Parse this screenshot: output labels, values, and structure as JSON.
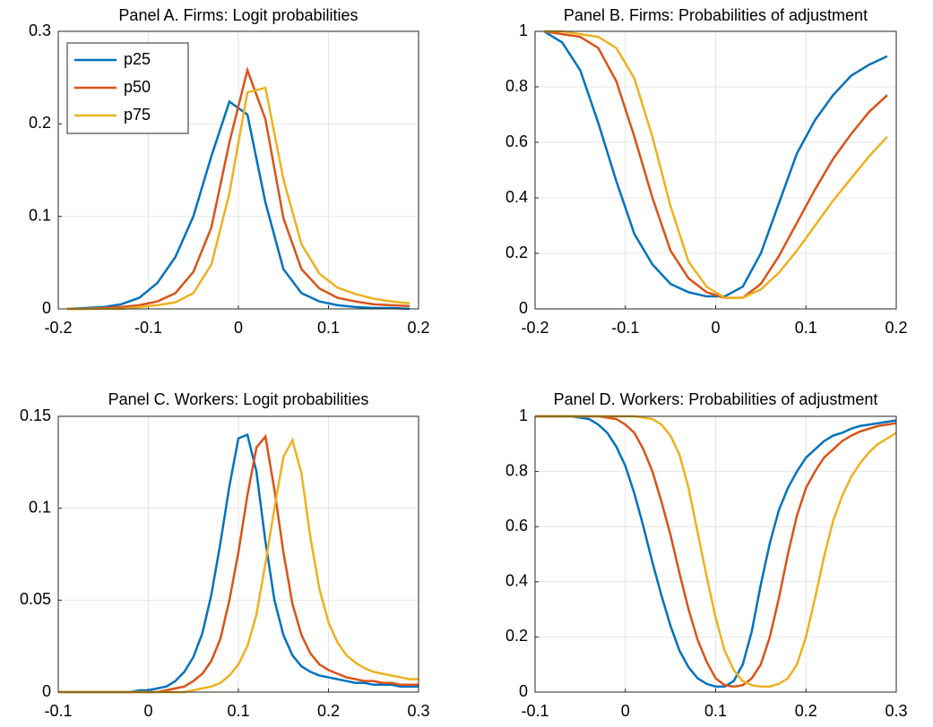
{
  "chart_data": [
    {
      "type": "line",
      "title": "Panel A. Firms: Logit probabilities",
      "grid": true,
      "legend": "northwest",
      "x": [
        -0.19,
        -0.17,
        -0.15,
        -0.13,
        -0.11,
        -0.09,
        -0.07,
        -0.05,
        -0.03,
        -0.01,
        0.01,
        0.03,
        0.05,
        0.07,
        0.09,
        0.11,
        0.13,
        0.15,
        0.17,
        0.19
      ],
      "xlim": [
        -0.2,
        0.2
      ],
      "xticks": [
        -0.2,
        -0.1,
        0,
        0.1,
        0.2
      ],
      "ylim": [
        0,
        0.3
      ],
      "yticks": [
        0,
        0.1,
        0.2,
        0.3
      ],
      "series": [
        {
          "name": "p25",
          "color": "#0072bd",
          "values": [
            0,
            0.001,
            0.002,
            0.005,
            0.012,
            0.028,
            0.056,
            0.1,
            0.165,
            0.224,
            0.21,
            0.115,
            0.043,
            0.017,
            0.008,
            0.004,
            0.002,
            0.001,
            0.001,
            0
          ]
        },
        {
          "name": "p50",
          "color": "#d95319",
          "values": [
            0,
            0,
            0.001,
            0.002,
            0.004,
            0.008,
            0.017,
            0.04,
            0.088,
            0.18,
            0.258,
            0.205,
            0.098,
            0.043,
            0.022,
            0.012,
            0.008,
            0.005,
            0.004,
            0.003
          ]
        },
        {
          "name": "p75",
          "color": "#edb120",
          "values": [
            0,
            0,
            0,
            0,
            0.002,
            0.004,
            0.007,
            0.017,
            0.048,
            0.125,
            0.234,
            0.239,
            0.14,
            0.07,
            0.038,
            0.023,
            0.016,
            0.011,
            0.008,
            0.006
          ]
        }
      ]
    },
    {
      "type": "line",
      "title": "Panel B. Firms: Probabilities of adjustment",
      "grid": true,
      "x": [
        -0.19,
        -0.17,
        -0.15,
        -0.13,
        -0.11,
        -0.09,
        -0.07,
        -0.05,
        -0.03,
        -0.01,
        0.01,
        0.03,
        0.05,
        0.07,
        0.09,
        0.11,
        0.13,
        0.15,
        0.17,
        0.19
      ],
      "xlim": [
        -0.2,
        0.2
      ],
      "xticks": [
        -0.2,
        -0.1,
        0,
        0.1,
        0.2
      ],
      "ylim": [
        0,
        1
      ],
      "yticks": [
        0,
        0.2,
        0.4,
        0.6,
        0.8,
        1
      ],
      "series": [
        {
          "color": "#0072bd",
          "values": [
            1,
            0.96,
            0.86,
            0.67,
            0.46,
            0.27,
            0.16,
            0.09,
            0.06,
            0.045,
            0.045,
            0.08,
            0.2,
            0.38,
            0.56,
            0.68,
            0.77,
            0.84,
            0.88,
            0.91
          ]
        },
        {
          "color": "#d95319",
          "values": [
            1,
            0.99,
            0.98,
            0.94,
            0.82,
            0.62,
            0.4,
            0.21,
            0.11,
            0.06,
            0.04,
            0.04,
            0.09,
            0.19,
            0.31,
            0.43,
            0.54,
            0.63,
            0.71,
            0.77
          ]
        },
        {
          "color": "#edb120",
          "values": [
            1,
            1,
            0.99,
            0.98,
            0.94,
            0.83,
            0.62,
            0.37,
            0.17,
            0.08,
            0.04,
            0.04,
            0.07,
            0.13,
            0.21,
            0.3,
            0.39,
            0.47,
            0.55,
            0.62
          ]
        }
      ]
    },
    {
      "type": "line",
      "title": "Panel C. Workers: Logit probabilities",
      "grid": true,
      "x": [
        -0.1,
        -0.09,
        -0.08,
        -0.07,
        -0.06,
        -0.05,
        -0.04,
        -0.03,
        -0.02,
        -0.01,
        0,
        0.01,
        0.02,
        0.03,
        0.04,
        0.05,
        0.06,
        0.07,
        0.08,
        0.09,
        0.1,
        0.11,
        0.12,
        0.13,
        0.14,
        0.15,
        0.16,
        0.17,
        0.18,
        0.19,
        0.2,
        0.21,
        0.22,
        0.23,
        0.24,
        0.25,
        0.26,
        0.27,
        0.28,
        0.29,
        0.3
      ],
      "xlim": [
        -0.1,
        0.3
      ],
      "xticks": [
        -0.1,
        0,
        0.1,
        0.2,
        0.3
      ],
      "ylim": [
        0,
        0.15
      ],
      "yticks": [
        0,
        0.05,
        0.1,
        0.15
      ],
      "series": [
        {
          "color": "#0072bd",
          "values": [
            0,
            0,
            0,
            0,
            0,
            0,
            0,
            0,
            0,
            0.001,
            0.001,
            0.002,
            0.003,
            0.006,
            0.011,
            0.019,
            0.032,
            0.053,
            0.081,
            0.112,
            0.138,
            0.14,
            0.12,
            0.082,
            0.05,
            0.031,
            0.02,
            0.014,
            0.011,
            0.009,
            0.008,
            0.007,
            0.006,
            0.005,
            0.005,
            0.004,
            0.004,
            0.004,
            0.003,
            0.003,
            0.003
          ]
        },
        {
          "color": "#d95319",
          "values": [
            0,
            0,
            0,
            0,
            0,
            0,
            0,
            0,
            0,
            0,
            0,
            0,
            0.001,
            0.002,
            0.003,
            0.006,
            0.01,
            0.017,
            0.029,
            0.05,
            0.076,
            0.107,
            0.133,
            0.139,
            0.11,
            0.076,
            0.048,
            0.031,
            0.021,
            0.015,
            0.012,
            0.01,
            0.008,
            0.007,
            0.006,
            0.006,
            0.005,
            0.005,
            0.004,
            0.004,
            0.004
          ]
        },
        {
          "color": "#edb120",
          "values": [
            0,
            0,
            0,
            0,
            0,
            0,
            0,
            0,
            0,
            0,
            0,
            0,
            0,
            0,
            0,
            0.001,
            0.002,
            0.003,
            0.005,
            0.009,
            0.015,
            0.025,
            0.042,
            0.07,
            0.1,
            0.128,
            0.137,
            0.119,
            0.084,
            0.056,
            0.038,
            0.027,
            0.02,
            0.016,
            0.013,
            0.011,
            0.01,
            0.009,
            0.008,
            0.007,
            0.007
          ]
        }
      ]
    },
    {
      "type": "line",
      "title": "Panel D. Workers: Probabilities of adjustment",
      "grid": true,
      "x": [
        -0.1,
        -0.09,
        -0.08,
        -0.07,
        -0.06,
        -0.05,
        -0.04,
        -0.03,
        -0.02,
        -0.01,
        0,
        0.01,
        0.02,
        0.03,
        0.04,
        0.05,
        0.06,
        0.07,
        0.08,
        0.09,
        0.1,
        0.11,
        0.12,
        0.13,
        0.14,
        0.15,
        0.16,
        0.17,
        0.18,
        0.19,
        0.2,
        0.21,
        0.22,
        0.23,
        0.24,
        0.25,
        0.26,
        0.27,
        0.28,
        0.29,
        0.3
      ],
      "xlim": [
        -0.1,
        0.3
      ],
      "xticks": [
        -0.1,
        0,
        0.1,
        0.2,
        0.3
      ],
      "ylim": [
        0,
        1
      ],
      "yticks": [
        0,
        0.2,
        0.4,
        0.6,
        0.8,
        1
      ],
      "series": [
        {
          "color": "#0072bd",
          "values": [
            1,
            1,
            1,
            1,
            1,
            0.995,
            0.99,
            0.97,
            0.94,
            0.89,
            0.82,
            0.72,
            0.6,
            0.47,
            0.35,
            0.24,
            0.15,
            0.09,
            0.05,
            0.03,
            0.02,
            0.02,
            0.04,
            0.1,
            0.22,
            0.39,
            0.54,
            0.66,
            0.74,
            0.8,
            0.85,
            0.88,
            0.91,
            0.93,
            0.94,
            0.955,
            0.965,
            0.97,
            0.975,
            0.98,
            0.985
          ]
        },
        {
          "color": "#d95319",
          "values": [
            1,
            1,
            1,
            1,
            1,
            1,
            1,
            1,
            0.995,
            0.99,
            0.97,
            0.94,
            0.88,
            0.8,
            0.69,
            0.57,
            0.43,
            0.3,
            0.19,
            0.11,
            0.05,
            0.025,
            0.02,
            0.025,
            0.05,
            0.1,
            0.2,
            0.34,
            0.5,
            0.64,
            0.74,
            0.8,
            0.85,
            0.88,
            0.91,
            0.93,
            0.945,
            0.955,
            0.965,
            0.97,
            0.975
          ]
        },
        {
          "color": "#edb120",
          "values": [
            1,
            1,
            1,
            1,
            1,
            1,
            1,
            1,
            1,
            1,
            1,
            1,
            0.995,
            0.99,
            0.97,
            0.93,
            0.86,
            0.74,
            0.58,
            0.42,
            0.27,
            0.15,
            0.08,
            0.04,
            0.025,
            0.02,
            0.02,
            0.03,
            0.05,
            0.1,
            0.2,
            0.34,
            0.49,
            0.62,
            0.71,
            0.78,
            0.83,
            0.87,
            0.9,
            0.92,
            0.94
          ]
        }
      ]
    }
  ]
}
